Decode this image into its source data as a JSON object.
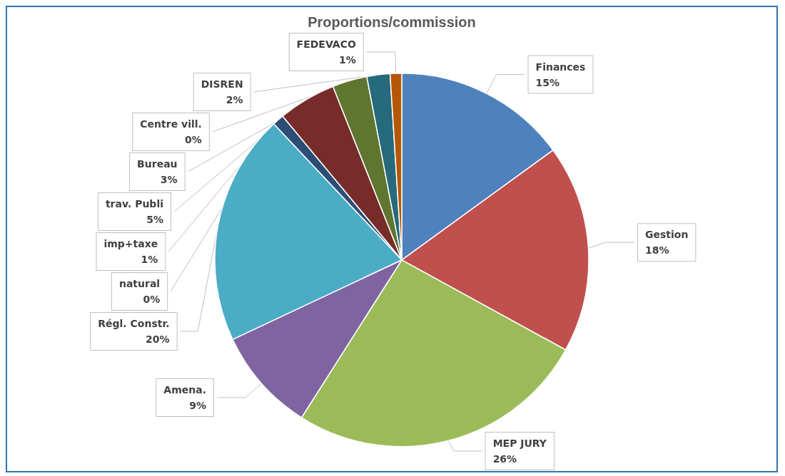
{
  "chart_data": {
    "type": "pie",
    "title": "Proportions/commission",
    "categories": [
      "Finances",
      "Gestion",
      "MEP JURY",
      "Amena.",
      "Régl. Constr.",
      "natural",
      "imp+taxe",
      "trav. Publi",
      "Bureau",
      "Centre vill.",
      "DISREN",
      "FEDEVACO"
    ],
    "values": [
      15,
      18,
      26,
      9,
      20,
      0,
      1,
      5,
      3,
      0,
      2,
      1
    ],
    "value_labels": [
      "15%",
      "18%",
      "26%",
      "9%",
      "20%",
      "0%",
      "1%",
      "5%",
      "3%",
      "0%",
      "2%",
      "1%"
    ],
    "colors": [
      "#4f81bd",
      "#c0504d",
      "#9bbb59",
      "#8064a2",
      "#4bacc6",
      "#f79646",
      "#2c4d75",
      "#772c2a",
      "#5f7530",
      "#4d3b62",
      "#276a7c",
      "#b65708"
    ],
    "legend": false
  }
}
